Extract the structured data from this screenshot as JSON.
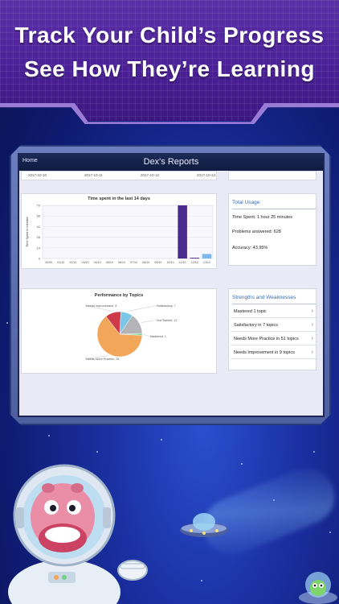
{
  "banner": {
    "line1": "Track Your Child’s Progress",
    "line2": "See How They’re Learning"
  },
  "app": {
    "home_label": "Home",
    "title": "Dex's Reports"
  },
  "date_strip": [
    "2017-10-10",
    "2017-10-11",
    "2017-10-12",
    "2017-10-13"
  ],
  "time_chart": {
    "title": "Time spent in the last 14 days",
    "ylabel": "Time Spent in minutes"
  },
  "chart_data": [
    {
      "type": "bar",
      "title": "Time spent in the last 14 days",
      "ylabel": "Time Spent in minutes",
      "xlabel": "",
      "ylim": [
        0,
        70
      ],
      "yticks": [
        "0",
        "14",
        "28",
        "42",
        "56",
        "70"
      ],
      "categories": [
        "30/09",
        "01/10",
        "02/10",
        "03/10",
        "04/10",
        "05/10",
        "06/10",
        "07/10",
        "08/10",
        "09/10",
        "10/10",
        "11/10",
        "12/10",
        "13/10"
      ],
      "values": [
        0,
        0,
        0,
        0,
        0,
        0,
        0,
        0,
        0,
        0,
        0,
        70,
        1,
        6
      ],
      "colors": [
        "#4a2a8c",
        "#4a2a8c",
        "#4a2a8c",
        "#4a2a8c",
        "#4a2a8c",
        "#4a2a8c",
        "#4a2a8c",
        "#4a2a8c",
        "#4a2a8c",
        "#4a2a8c",
        "#4a2a8c",
        "#4a2a8c",
        "#4a2a8c",
        "#7fb8ea"
      ]
    },
    {
      "type": "pie",
      "title": "Performance by Topics",
      "slices": [
        {
          "label": "Satisfactory, 7",
          "value": 7,
          "color": "#7cc6e8"
        },
        {
          "label": "Not Started, 12",
          "value": 12,
          "color": "#b4b4b8"
        },
        {
          "label": "Mastered, 1",
          "value": 1,
          "color": "#6fd08a"
        },
        {
          "label": "Needs More Practice, 51",
          "value": 51,
          "color": "#f2a65a"
        },
        {
          "label": "Needs Improvement, 9",
          "value": 9,
          "color": "#cf3a4a"
        }
      ]
    }
  ],
  "usage": {
    "heading": "Total Usage",
    "time_spent": "Time Spent: 1 hour 25 minutes",
    "problems": "Problems answered: 628",
    "accuracy": "Accuracy: 43.95%"
  },
  "strengths": {
    "heading": "Strengths and Weaknesses",
    "rows": [
      "Mastered 1 topic",
      "Satisfactory in 7 topics",
      "Needs More Practice in 51 topics",
      "Needs Improvement in 9 topics"
    ]
  }
}
